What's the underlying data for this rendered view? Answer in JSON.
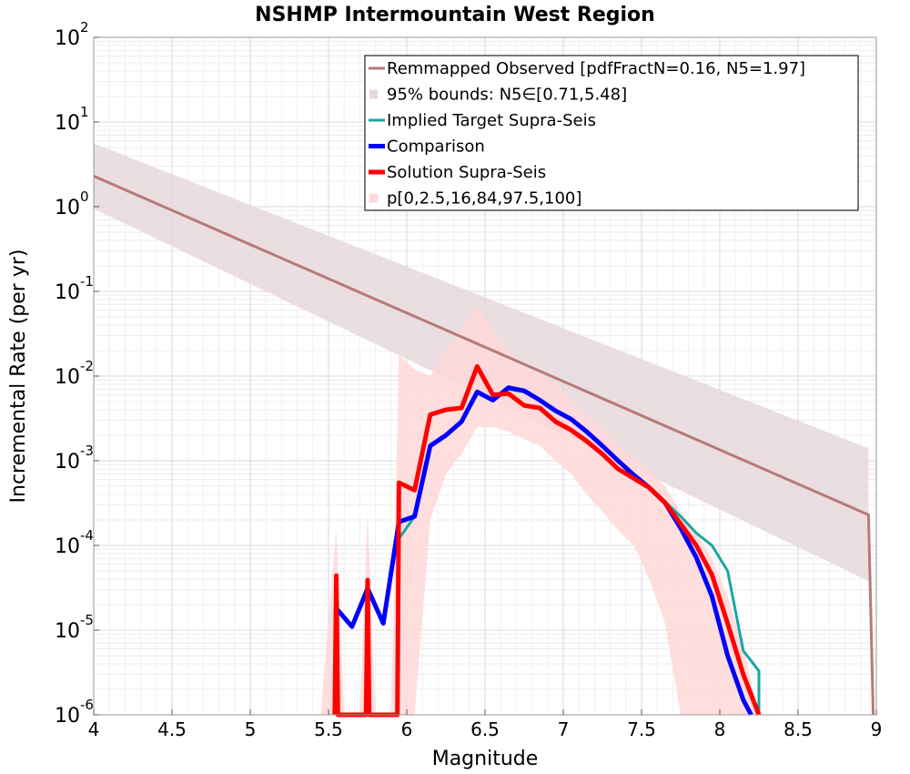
{
  "chart_data": {
    "type": "line",
    "title": "NSHMP Intermountain West Region",
    "xlabel": "Magnitude",
    "ylabel": "Incremental Rate (per yr)",
    "xlim": [
      4,
      9
    ],
    "ylim": [
      1e-06,
      100
    ],
    "yscale": "log",
    "grid": true,
    "legend_position": "top-right",
    "x_ticks": [
      "4",
      "4.5",
      "5",
      "5.5",
      "6",
      "6.5",
      "7",
      "7.5",
      "8",
      "8.5",
      "9"
    ],
    "y_ticks": [
      {
        "base": "10",
        "exp": "2"
      },
      {
        "base": "10",
        "exp": "1"
      },
      {
        "base": "10",
        "exp": "0"
      },
      {
        "base": "10",
        "exp": "-1"
      },
      {
        "base": "10",
        "exp": "-2"
      },
      {
        "base": "10",
        "exp": "-3"
      },
      {
        "base": "10",
        "exp": "-4"
      },
      {
        "base": "10",
        "exp": "-5"
      },
      {
        "base": "10",
        "exp": "-6"
      }
    ],
    "legend": [
      {
        "label": "Remmapped Observed [pdfFractN=0.16, N5=1.97]",
        "kind": "line",
        "color": "#b77a78"
      },
      {
        "label": "95% bounds: N5∈[0.71,5.48]",
        "kind": "box",
        "color": "#e8d8da"
      },
      {
        "label": "Implied Target Supra-Seis",
        "kind": "line",
        "color": "#1aa6a6"
      },
      {
        "label": "Comparison",
        "kind": "line",
        "color": "#0000ff"
      },
      {
        "label": "Solution Supra-Seis",
        "kind": "line",
        "color": "#ff0000"
      },
      {
        "label": "p[0,2.5,16,84,97.5,100]",
        "kind": "box",
        "color": "#ffd8d8"
      }
    ],
    "series": [
      {
        "name": "Remmapped Observed [pdfFractN=0.16, N5=1.97]",
        "color": "#b77a78",
        "x": [
          4.0,
          8.95,
          8.95,
          8.98
        ],
        "y": [
          2.3,
          0.00023,
          0.00023,
          1e-06
        ]
      },
      {
        "name": "95% bounds: N5∈[0.71,5.48]",
        "color": "#e8d8da",
        "band": true,
        "x": [
          4.0,
          8.95
        ],
        "upper": [
          5.6,
          0.0014
        ],
        "lower": [
          0.95,
          3.8e-05
        ]
      },
      {
        "name": "Implied Target Supra-Seis",
        "color": "#1aa6a6",
        "x": [
          5.95,
          6.05,
          6.15,
          6.25,
          6.35,
          6.45,
          6.55,
          6.65,
          6.75,
          6.85,
          6.95,
          7.05,
          7.15,
          7.25,
          7.35,
          7.45,
          7.55,
          7.65,
          7.75,
          7.85,
          7.95,
          8.05,
          8.15,
          8.25,
          8.25
        ],
        "y": [
          0.00012,
          0.00022,
          0.0015,
          0.002,
          0.0028,
          0.0065,
          0.0052,
          0.007,
          0.0065,
          0.0052,
          0.0038,
          0.0031,
          0.0022,
          0.0015,
          0.001,
          0.00068,
          0.00048,
          0.00033,
          0.00022,
          0.00014,
          0.0001,
          5e-05,
          5.7e-06,
          3.3e-06,
          1e-06
        ]
      },
      {
        "name": "Comparison",
        "color": "#0000ff",
        "x": [
          5.55,
          5.55,
          5.65,
          5.75,
          5.85,
          5.95,
          6.05,
          6.15,
          6.25,
          6.35,
          6.45,
          6.55,
          6.65,
          6.75,
          6.85,
          6.95,
          7.05,
          7.15,
          7.25,
          7.35,
          7.45,
          7.55,
          7.65,
          7.75,
          7.85,
          7.95,
          8.05,
          8.15,
          8.2
        ],
        "y": [
          1e-06,
          1.8e-05,
          1.1e-05,
          3.1e-05,
          1.2e-05,
          0.00019,
          0.00022,
          0.0015,
          0.002,
          0.0029,
          0.0065,
          0.0052,
          0.0073,
          0.0067,
          0.0052,
          0.0039,
          0.0031,
          0.0022,
          0.0015,
          0.001,
          0.00068,
          0.00048,
          0.00032,
          0.00016,
          7.2e-05,
          2.5e-05,
          5e-06,
          1.5e-06,
          1e-06
        ]
      },
      {
        "name": "Solution Supra-Seis",
        "color": "#ff0000",
        "x": [
          5.54,
          5.55,
          5.56,
          5.74,
          5.75,
          5.76,
          5.94,
          5.95,
          6.05,
          6.15,
          6.25,
          6.35,
          6.45,
          6.55,
          6.65,
          6.75,
          6.85,
          6.95,
          7.05,
          7.15,
          7.25,
          7.35,
          7.45,
          7.55,
          7.65,
          7.75,
          7.85,
          7.95,
          8.05,
          8.15,
          8.25
        ],
        "y": [
          1e-06,
          4.4e-05,
          1e-06,
          1e-06,
          3.9e-05,
          1e-06,
          1e-06,
          0.00055,
          0.00045,
          0.0035,
          0.004,
          0.0042,
          0.013,
          0.006,
          0.0062,
          0.0045,
          0.0042,
          0.0029,
          0.0023,
          0.0017,
          0.0012,
          0.0008,
          0.00062,
          0.00048,
          0.00032,
          0.00018,
          0.0001,
          4.5e-05,
          1.2e-05,
          3e-06,
          1e-06
        ]
      },
      {
        "name": "p[0,2.5,16,84,97.5,100]",
        "color": "#ffd8d8",
        "band": true,
        "x": [
          5.45,
          5.55,
          5.6,
          5.7,
          5.75,
          5.8,
          5.9,
          5.95,
          6.05,
          6.15,
          6.25,
          6.35,
          6.45,
          6.55,
          6.65,
          6.75,
          6.85,
          6.95,
          7.05,
          7.15,
          7.25,
          7.35,
          7.45,
          7.55,
          7.65,
          7.75,
          7.85,
          7.95,
          8.05,
          8.15,
          8.25
        ],
        "upper": [
          1e-06,
          0.00016,
          1e-06,
          1e-06,
          0.00025,
          1e-06,
          1e-06,
          0.018,
          0.012,
          0.01,
          0.02,
          0.035,
          0.07,
          0.035,
          0.02,
          0.013,
          0.011,
          0.008,
          0.005,
          0.0035,
          0.0025,
          0.0015,
          0.0011,
          0.0008,
          0.0005,
          0.00025,
          0.00014,
          7e-05,
          2.5e-05,
          6e-06,
          1e-06
        ],
        "lower": [
          1e-06,
          1e-06,
          1e-06,
          1e-06,
          1e-06,
          1e-06,
          1e-06,
          1e-06,
          1e-06,
          0.0002,
          0.0007,
          0.0012,
          0.0025,
          0.0025,
          0.0022,
          0.0018,
          0.0015,
          0.001,
          0.0007,
          0.0004,
          0.00025,
          0.00015,
          0.0001,
          4e-05,
          1.2e-05,
          1e-06,
          1e-06,
          1e-06,
          1e-06,
          1e-06,
          1e-06
        ]
      }
    ]
  }
}
